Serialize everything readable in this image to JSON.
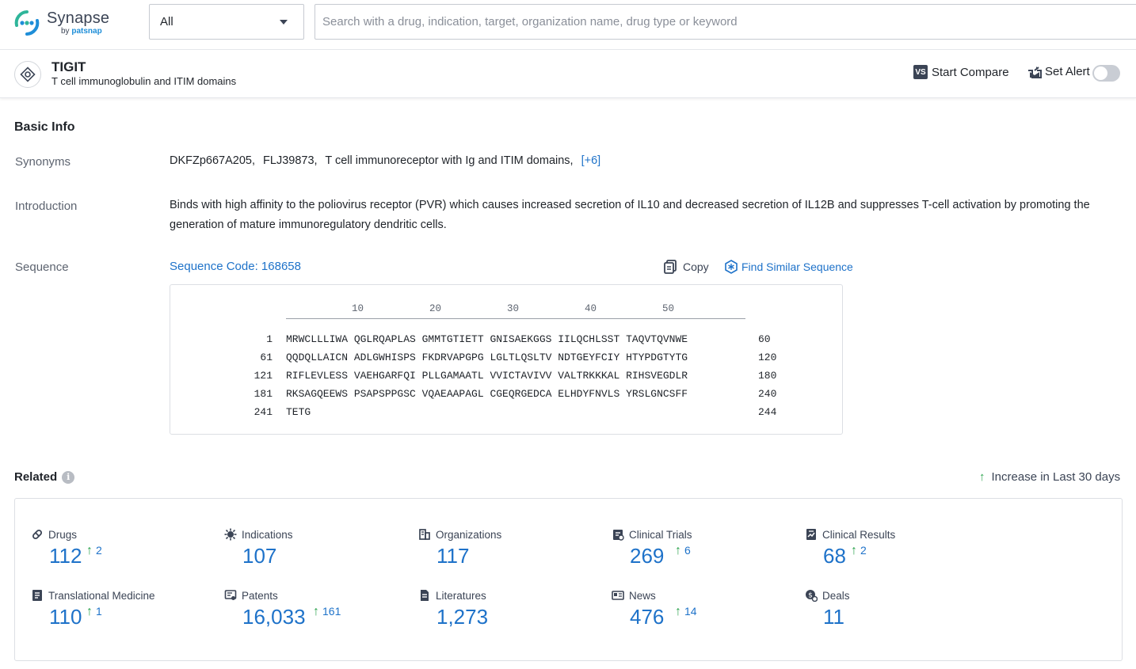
{
  "header": {
    "logo_name": "Synapse",
    "logo_by": "by",
    "logo_brand": "patsnap",
    "category_select": "All",
    "search_placeholder": "Search with a drug, indication, target, organization name, drug type or keyword"
  },
  "entity": {
    "title": "TIGIT",
    "subtitle": "T cell immunoglobulin and ITIM domains",
    "start_compare_badge": "VS",
    "start_compare_label": "Start Compare",
    "set_alert_label": "Set Alert"
  },
  "basic_info": {
    "title": "Basic Info",
    "synonyms_label": "Synonyms",
    "synonyms": [
      "DKFZp667A205,",
      "FLJ39873,",
      "T cell immunoreceptor with Ig and ITIM domains,"
    ],
    "synonyms_more": "[+6]",
    "introduction_label": "Introduction",
    "introduction": "Binds with high affinity to the poliovirus receptor (PVR) which causes increased secretion of IL10 and decreased secretion of IL12B and suppresses T-cell activation by promoting the generation of mature immunoregulatory dendritic cells.",
    "sequence_label": "Sequence",
    "sequence_code": "Sequence Code: 168658",
    "copy_label": "Copy",
    "find_similar_label": "Find Similar Sequence",
    "ruler": [
      "10",
      "20",
      "30",
      "40",
      "50"
    ],
    "rows": [
      {
        "start": "1",
        "seq": "MRWCLLLIWA QGLRQAPLAS GMMTGTIETT GNISAEKGGS IILQCHLSST TAQVTQVNWE",
        "end": "60"
      },
      {
        "start": "61",
        "seq": "QQDQLLAICN ADLGWHISPS FKDRVAPGPG LGLTLQSLTV NDTGEYFCIY HTYPDGTYTG",
        "end": "120"
      },
      {
        "start": "121",
        "seq": "RIFLEVLESS VAEHGARFQI PLLGAMAATL VVICTAVIVV VALTRKKKAL RIHSVEGDLR",
        "end": "180"
      },
      {
        "start": "181",
        "seq": "RKSAGQEEWS PSAPSPPGSC VQAEAAPAGL CGEQRGEDCA ELHDYFNVLS YRSLGNCSFF",
        "end": "240"
      },
      {
        "start": "241",
        "seq": "TETG",
        "end": "244"
      }
    ]
  },
  "related": {
    "title": "Related",
    "info_glyph": "i",
    "increase_arrow": "↑",
    "increase_note": "Increase in Last 30 days",
    "stats": [
      {
        "label": "Drugs",
        "value": "112",
        "increase": "2",
        "icon": "pill-icon"
      },
      {
        "label": "Indications",
        "value": "107",
        "increase": "",
        "icon": "virus-icon"
      },
      {
        "label": "Organizations",
        "value": "117",
        "increase": "",
        "icon": "building-icon"
      },
      {
        "label": "Clinical Trials",
        "value": "269",
        "increase": "6",
        "icon": "clipboard-icon"
      },
      {
        "label": "Clinical Results",
        "value": "68",
        "increase": "2",
        "icon": "chart-doc-icon"
      },
      {
        "label": "Translational Medicine",
        "value": "110",
        "increase": "1",
        "icon": "report-icon"
      },
      {
        "label": "Patents",
        "value": "16,033",
        "increase": "161",
        "icon": "patent-icon"
      },
      {
        "label": "Literatures",
        "value": "1,273",
        "increase": "",
        "icon": "document-icon"
      },
      {
        "label": "News",
        "value": "476",
        "increase": "14",
        "icon": "newspaper-icon"
      },
      {
        "label": "Deals",
        "value": "11",
        "increase": "",
        "icon": "handshake-icon"
      }
    ]
  },
  "colors": {
    "accent": "#1e72c9",
    "increase": "#2ea44f",
    "logo_green": "#2fb59a",
    "logo_blue": "#1e8ed8"
  }
}
